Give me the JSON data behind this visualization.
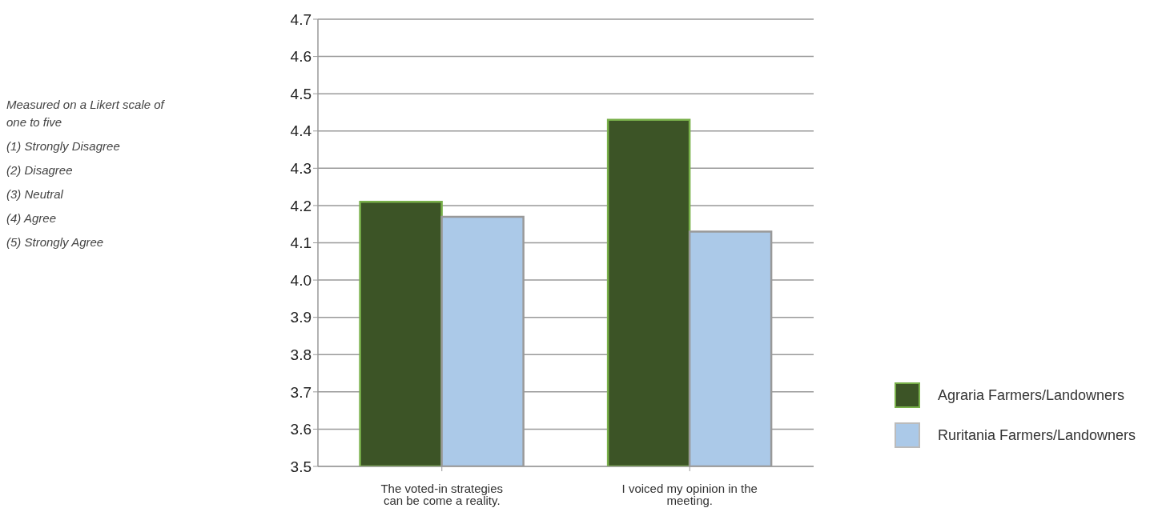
{
  "chart_data": {
    "type": "bar",
    "categories": [
      "The voted-in strategies can be come a reality.",
      "I voiced my opinion in the meeting."
    ],
    "series": [
      {
        "name": "Agraria Farmers/Landowners",
        "color": "#3c5426",
        "values": [
          4.21,
          4.43
        ]
      },
      {
        "name": "Ruritania Farmers/Landowners",
        "color": "#abc9e8",
        "values": [
          4.17,
          4.13
        ]
      }
    ],
    "ylim": [
      3.5,
      4.7
    ],
    "yticks": [
      {
        "value": 3.5,
        "label": "3.5"
      },
      {
        "value": 3.6,
        "label": "3.6"
      },
      {
        "value": 3.7,
        "label": "3.7"
      },
      {
        "value": 3.8,
        "label": "3.8"
      },
      {
        "value": 3.9,
        "label": "3.9"
      },
      {
        "value": 4.0,
        "label": "4.0"
      },
      {
        "value": 4.1,
        "label": "4.1"
      },
      {
        "value": 4.2,
        "label": "4.2"
      },
      {
        "value": 4.3,
        "label": "4.3"
      },
      {
        "value": 4.4,
        "label": "4.4"
      },
      {
        "value": 4.5,
        "label": "4.5"
      },
      {
        "value": 4.6,
        "label": "4.6"
      },
      {
        "value": 4.7,
        "label": "4.7"
      }
    ],
    "grid": "y",
    "legend": "right",
    "annotations": [
      "Measured on a Likert scale of one to five",
      "(1) Strongly Disagree",
      "(2) Disagree",
      "(3) Neutral",
      "(4) Agree",
      "(5) Strongly Agree"
    ]
  }
}
